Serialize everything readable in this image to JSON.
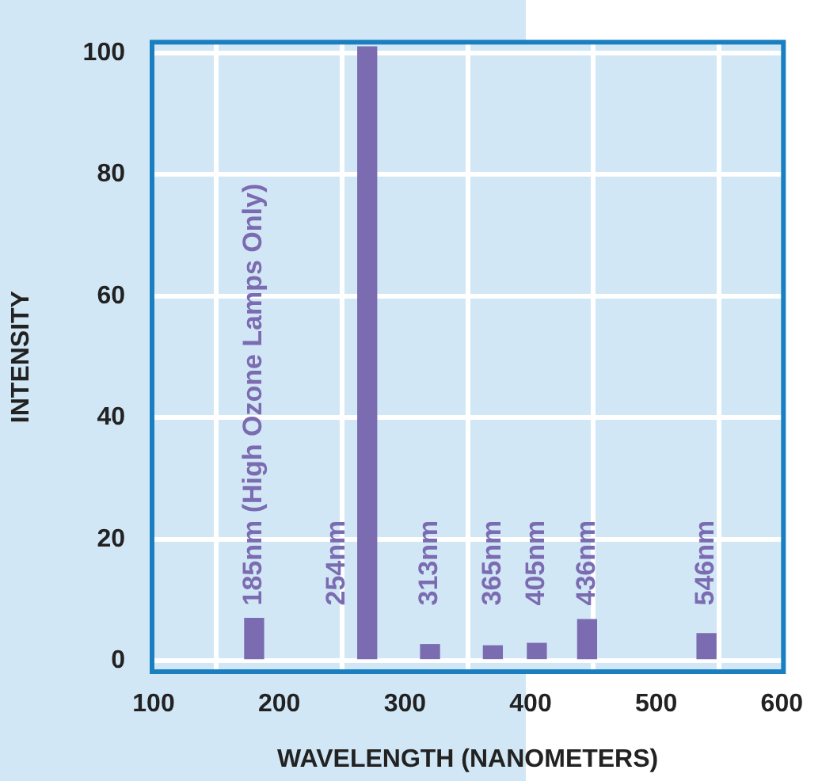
{
  "chart_data": {
    "type": "bar",
    "xlabel": "WAVELENGTH (NANOMETERS)",
    "ylabel": "INTENSITY",
    "x": [
      180,
      270,
      320,
      370,
      405,
      445,
      540
    ],
    "values": [
      7,
      101,
      2.7,
      2.5,
      2.9,
      6.8,
      4.5
    ],
    "color": "#7b6bb1",
    "xlim": [
      100,
      600
    ],
    "xticks": [
      100,
      200,
      300,
      400,
      500,
      600
    ],
    "ylim": [
      -1.5,
      101.5
    ],
    "yticks": [
      0,
      20,
      40,
      60,
      80,
      100
    ],
    "grid": true,
    "legend": false,
    "annotations": [
      "185nm (High Ozone Lamps Only)",
      "254nm",
      "313nm",
      "365nm",
      "405nm",
      "436nm",
      "546nm"
    ]
  }
}
